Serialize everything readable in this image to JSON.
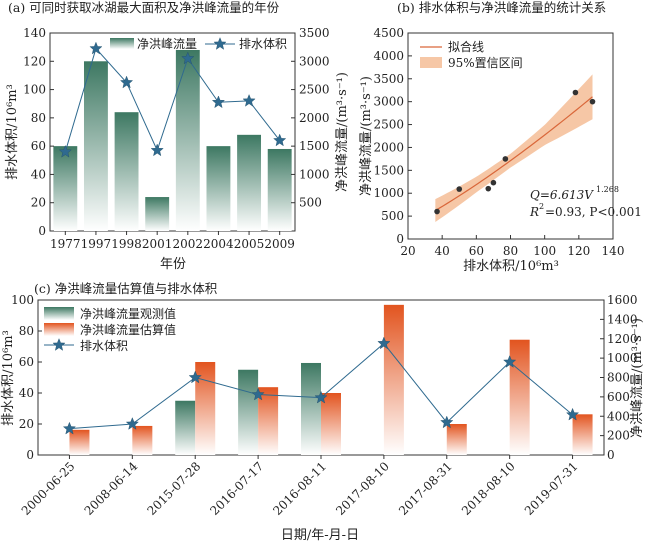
{
  "chart_data": [
    {
      "type": "bar",
      "title": "(a) 可同时获取冰湖最大面积及净洪峰流量的年份",
      "xlabel": "年份",
      "ylabel": "排水体积/10⁶m³",
      "y2label": "净洪峰流量/(m³·s⁻¹)",
      "categories": [
        "1977",
        "1997",
        "1998",
        "2001",
        "2002",
        "2004",
        "2005",
        "2009"
      ],
      "ylim": [
        0,
        140
      ],
      "y2lim": [
        0,
        3500
      ],
      "yticks": [
        "0",
        "20",
        "40",
        "60",
        "80",
        "100",
        "120",
        "140"
      ],
      "y2ticks": [
        "500",
        "1000",
        "1500",
        "2000",
        "2500",
        "3000",
        "3500"
      ],
      "grid": false,
      "legend": "top",
      "series": [
        {
          "name": "净洪峰流量",
          "kind": "bar",
          "axis": "right",
          "color": "#3f7a63",
          "values": [
            1500,
            3000,
            2100,
            600,
            3200,
            1500,
            1700,
            1450
          ]
        },
        {
          "name": "排水体积",
          "kind": "line",
          "axis": "left",
          "color": "#2f6a8f",
          "values": [
            56,
            129,
            105,
            57,
            122,
            91,
            92,
            64
          ]
        }
      ]
    },
    {
      "type": "scatter",
      "title": "(b) 排水体积与净洪峰流量的统计关系",
      "xlabel": "排水体积/10⁶m³",
      "ylabel": "净洪峰流量/(m³·s⁻¹)",
      "xlim": [
        20,
        140
      ],
      "ylim": [
        0,
        4500
      ],
      "xticks": [
        "20",
        "40",
        "60",
        "80",
        "100",
        "120",
        "140"
      ],
      "yticks": [
        "0",
        "500",
        "1000",
        "1500",
        "2000",
        "2500",
        "3000",
        "3500",
        "4000",
        "4500"
      ],
      "legend": "top-left",
      "legend_entries": [
        "拟合线",
        "95%置信区间"
      ],
      "points": [
        {
          "x": 37,
          "y": 600
        },
        {
          "x": 50,
          "y": 1090
        },
        {
          "x": 67,
          "y": 1100
        },
        {
          "x": 70,
          "y": 1230
        },
        {
          "x": 77,
          "y": 1750
        },
        {
          "x": 118,
          "y": 3200
        },
        {
          "x": 128,
          "y": 3000
        }
      ],
      "fit": {
        "a": 6.613,
        "b": 1.268,
        "r2": 0.93
      },
      "ci_halfwidth": [
        {
          "x": 36,
          "h": 250
        },
        {
          "x": 60,
          "h": 170
        },
        {
          "x": 80,
          "h": 150
        },
        {
          "x": 100,
          "h": 220
        },
        {
          "x": 128,
          "h": 490
        }
      ],
      "annotations": [
        "Q=6.613V",
        "1.268",
        "R",
        "2",
        "=0.93, P<0.001"
      ],
      "colors": {
        "fit": "#d9673a",
        "band": "#f6c7a6",
        "point": "#333333"
      }
    },
    {
      "type": "bar",
      "title": "(c) 净洪峰流量估算值与排水体积",
      "xlabel": "日期/年-月-日",
      "ylabel": "排水体积/10⁶m³",
      "y2label": "净洪峰流量/(m³·s⁻¹)",
      "categories": [
        "2000-06-25",
        "2008-06-14",
        "2015-07-28",
        "2016-07-17",
        "2016-08-11",
        "2017-08-10",
        "2017-08-31",
        "2018-08-10",
        "2019-07-31"
      ],
      "ylim": [
        0,
        100
      ],
      "y2lim": [
        0,
        1600
      ],
      "yticks": [
        "0",
        "20",
        "40",
        "60",
        "80",
        "100"
      ],
      "y2ticks": [
        "0",
        "200",
        "400",
        "600",
        "800",
        "1000",
        "1200",
        "1400",
        "1600"
      ],
      "grid": false,
      "legend": "top-left",
      "series": [
        {
          "name": "净洪峰流量观测值",
          "kind": "bar",
          "axis": "right",
          "color": "#3f7a63",
          "values": [
            null,
            null,
            560,
            880,
            950,
            null,
            null,
            null,
            null
          ]
        },
        {
          "name": "净洪峰流量估算值",
          "kind": "bar",
          "axis": "right",
          "color": "#e2541f",
          "values": [
            260,
            300,
            960,
            700,
            640,
            1550,
            320,
            1190,
            420
          ]
        },
        {
          "name": "排水体积",
          "kind": "line",
          "axis": "left",
          "color": "#2f6a8f",
          "values": [
            17,
            20,
            50,
            39,
            37,
            72,
            21,
            60,
            26
          ]
        }
      ]
    }
  ]
}
